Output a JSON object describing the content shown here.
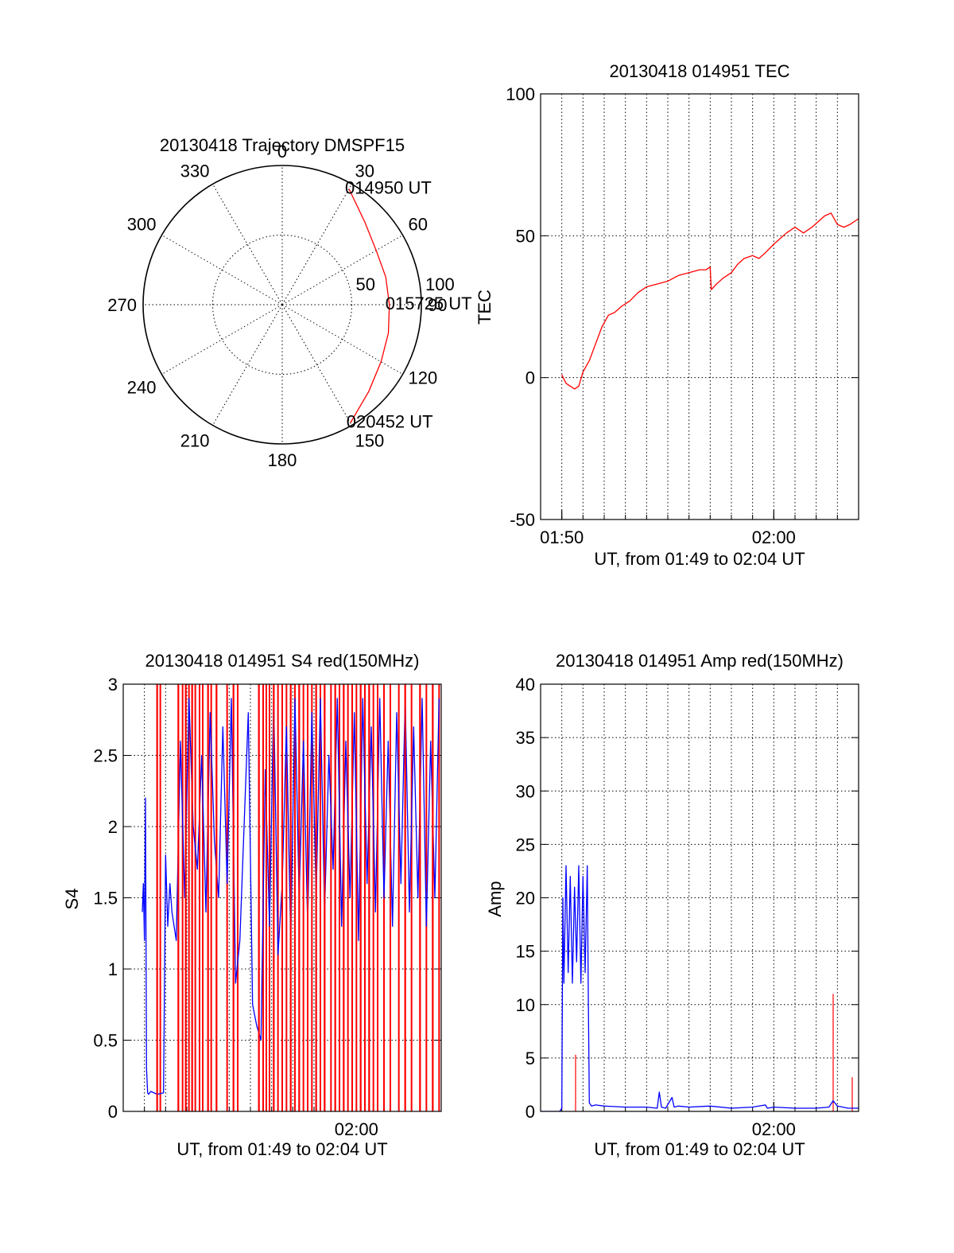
{
  "colors": {
    "red": "#ff0000",
    "blue": "#0000ff",
    "axis": "#000000"
  },
  "chart_data": [
    {
      "id": "trajectory",
      "type": "polar",
      "title": "20130418 Trajectory DMSPF15",
      "theta_labels": [
        "0",
        "30",
        "60",
        "90",
        "120",
        "150",
        "180",
        "210",
        "240",
        "270",
        "300",
        "330"
      ],
      "radial_labels": [
        "50",
        "100"
      ],
      "radial_values": [
        50,
        100
      ],
      "radial_max": 100,
      "grid": true,
      "series": [
        {
          "color": "#ff0000",
          "points": [
            [
              30,
              96
            ],
            [
              45,
              84
            ],
            [
              60,
              78
            ],
            [
              75,
              77
            ],
            [
              90,
              77
            ],
            [
              105,
              79
            ],
            [
              120,
              82
            ],
            [
              135,
              88
            ],
            [
              150,
              98
            ]
          ]
        }
      ],
      "annotations": [
        {
          "text": "014950 UT",
          "theta": 30,
          "r": 96
        },
        {
          "text": "015725 UT",
          "theta": 90,
          "r": 77
        },
        {
          "text": "020452 UT",
          "theta": 150,
          "r": 98
        }
      ]
    },
    {
      "id": "tec",
      "type": "line",
      "title": "20130418 014951 TEC",
      "xlabel": "UT, from 01:49 to 02:04 UT",
      "ylabel": "TEC",
      "xlim": [
        0,
        15
      ],
      "ylim": [
        -50,
        100
      ],
      "yticks": [
        -50,
        0,
        50,
        100
      ],
      "xticks": [
        {
          "value": 1,
          "label": "01:50"
        },
        {
          "value": 11,
          "label": "02:00"
        }
      ],
      "grid": true,
      "series": [
        {
          "color": "#ff0000",
          "x": [
            1.0,
            1.2,
            1.4,
            1.6,
            1.8,
            2.0,
            2.3,
            2.6,
            2.9,
            3.2,
            3.5,
            3.8,
            4.2,
            4.6,
            5.0,
            5.5,
            6.0,
            6.5,
            7.0,
            7.5,
            7.8,
            8.0,
            8.05,
            8.3,
            8.6,
            9.0,
            9.3,
            9.6,
            10.0,
            10.3,
            10.6,
            11.0,
            11.3,
            11.6,
            12.0,
            12.4,
            12.8,
            13.1,
            13.4,
            13.7,
            14.0,
            14.3,
            14.6,
            15.0
          ],
          "y": [
            1,
            -2,
            -3,
            -4,
            -3,
            2,
            6,
            12,
            18,
            22,
            23,
            25,
            27,
            30,
            32,
            33,
            34,
            36,
            37,
            38,
            38,
            39,
            31,
            33,
            35,
            37,
            40,
            42,
            43,
            42,
            44,
            47,
            49,
            51,
            53,
            51,
            53,
            55,
            57,
            58,
            54,
            53,
            54,
            56
          ]
        }
      ]
    },
    {
      "id": "s4",
      "type": "line",
      "title": "20130418 014951 S4 red(150MHz)",
      "xlabel": "UT, from 01:49 to 02:04 UT",
      "ylabel": "S4",
      "xlim": [
        0,
        15
      ],
      "ylim": [
        0,
        3
      ],
      "yticks": [
        0,
        0.5,
        1,
        1.5,
        2,
        2.5,
        3
      ],
      "ytick_labels": [
        "0",
        "0.5",
        "1",
        "1.5",
        "2",
        "2.5",
        "3"
      ],
      "xticks": [
        {
          "value": 11,
          "label": "02:00"
        }
      ],
      "grid": true,
      "series": [
        {
          "color": "#0000ff",
          "x": [
            0.9,
            0.95,
            1.0,
            1.05,
            1.1,
            1.15,
            1.2,
            1.3,
            1.6,
            1.9,
            2.0,
            2.1,
            2.2,
            2.3,
            2.5,
            2.7,
            2.9,
            3.1,
            3.3,
            3.5,
            3.7,
            3.9,
            4.1,
            4.3,
            4.5,
            4.7,
            4.9,
            5.1,
            5.3,
            5.5,
            5.7,
            5.9,
            6.1,
            6.3,
            6.5,
            6.7,
            6.9,
            7.1,
            7.3,
            7.5,
            7.7,
            7.9,
            8.1,
            8.3,
            8.5,
            8.7,
            8.9,
            9.1,
            9.3,
            9.5,
            9.7,
            9.9,
            10.1,
            10.3,
            10.5,
            10.7,
            10.9,
            11.1,
            11.3,
            11.5,
            11.7,
            11.9,
            12.1,
            12.3,
            12.5,
            12.7,
            12.9,
            13.1,
            13.3,
            13.5,
            13.7,
            13.9,
            14.1,
            14.3,
            14.5,
            14.7,
            14.9
          ],
          "y": [
            1.4,
            1.6,
            1.2,
            2.2,
            0.3,
            0.13,
            0.12,
            0.14,
            0.12,
            0.13,
            1.8,
            1.3,
            1.6,
            1.4,
            1.2,
            2.6,
            1.5,
            2.9,
            2.0,
            1.7,
            2.5,
            1.4,
            2.8,
            1.9,
            1.5,
            2.7,
            1.6,
            2.9,
            0.9,
            1.2,
            2.0,
            2.8,
            0.75,
            0.6,
            0.5,
            2.4,
            1.3,
            2.9,
            1.1,
            1.6,
            2.7,
            1.2,
            2.9,
            1.5,
            2.6,
            1.3,
            2.8,
            1.5,
            2.9,
            1.4,
            2.5,
            1.7,
            2.9,
            1.3,
            2.6,
            1.5,
            2.8,
            1.2,
            2.9,
            1.6,
            2.7,
            1.4,
            2.9,
            1.5,
            2.6,
            1.3,
            2.8,
            1.6,
            2.9,
            1.4,
            2.7,
            1.5,
            2.9,
            1.3,
            2.6,
            1.5,
            2.9
          ]
        }
      ],
      "red_spikes": [
        1.6,
        1.75,
        2.6,
        2.8,
        2.95,
        3.1,
        3.25,
        3.4,
        3.6,
        3.75,
        4.0,
        4.15,
        4.4,
        4.9,
        5.2,
        5.4,
        6.4,
        6.6,
        6.75,
        6.9,
        7.1,
        7.3,
        7.5,
        7.7,
        7.9,
        8.1,
        8.3,
        8.5,
        8.7,
        8.9,
        9.1,
        9.3,
        9.5,
        9.8,
        10.0,
        10.2,
        10.4,
        10.6,
        10.8,
        11.0,
        11.2,
        11.4,
        11.6,
        11.8,
        12.0,
        12.3,
        12.6,
        13.0,
        13.3,
        13.6,
        14.0,
        14.3,
        14.6,
        14.9
      ]
    },
    {
      "id": "amp",
      "type": "line",
      "title": "20130418 014951 Amp red(150MHz)",
      "xlabel": "UT, from 01:49 to 02:04 UT",
      "ylabel": "Amp",
      "xlim": [
        0,
        15
      ],
      "ylim": [
        0,
        40
      ],
      "yticks": [
        0,
        5,
        10,
        15,
        20,
        25,
        30,
        35,
        40
      ],
      "xticks": [
        {
          "value": 11,
          "label": "02:00"
        }
      ],
      "grid": true,
      "series": [
        {
          "color": "#0000ff",
          "x": [
            0,
            0.9,
            1.0,
            1.05,
            1.1,
            1.2,
            1.3,
            1.4,
            1.5,
            1.6,
            1.7,
            1.8,
            1.9,
            2.0,
            2.1,
            2.2,
            2.25,
            2.3,
            2.4,
            2.6,
            3.0,
            4.0,
            5.0,
            5.5,
            5.6,
            5.7,
            5.9,
            6.2,
            6.3,
            6.5,
            7.0,
            8.0,
            9.0,
            10.0,
            10.6,
            10.7,
            11.0,
            12.0,
            13.0,
            13.6,
            13.8,
            14.0,
            14.5,
            15.0
          ],
          "y": [
            0,
            0,
            0.3,
            20,
            12,
            23,
            13,
            22,
            12,
            21,
            14,
            23,
            12,
            22,
            13,
            23,
            11,
            0.8,
            0.5,
            0.6,
            0.5,
            0.4,
            0.4,
            0.3,
            1.8,
            0.4,
            0.3,
            1.3,
            0.4,
            0.5,
            0.4,
            0.5,
            0.3,
            0.4,
            0.6,
            0.3,
            0.4,
            0.3,
            0.3,
            0.4,
            1.0,
            0.5,
            0.3,
            0.3
          ]
        }
      ],
      "red_spikes": [
        {
          "x": 1.65,
          "y": 5.3
        },
        {
          "x": 13.8,
          "y": 11.0
        },
        {
          "x": 14.7,
          "y": 3.2
        }
      ]
    }
  ]
}
